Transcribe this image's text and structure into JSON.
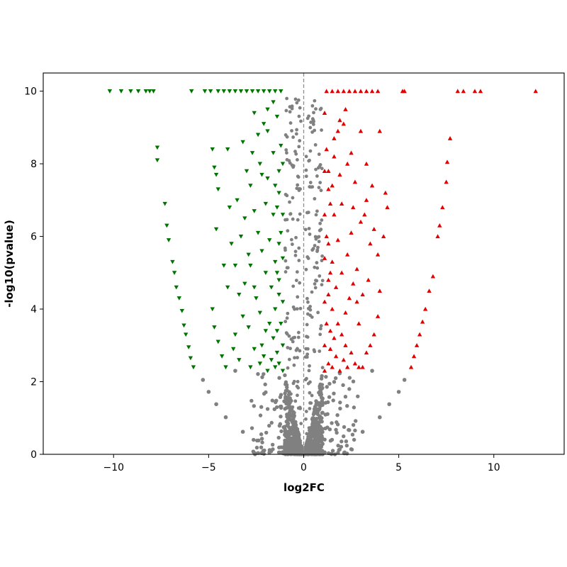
{
  "chart_data": {
    "type": "scatter",
    "title": "",
    "xlabel": "log2FC",
    "ylabel": "-log10(pvalue)",
    "xlim": [
      -13.7,
      13.7
    ],
    "ylim": [
      0,
      10.5
    ],
    "x_ticks": [
      -10,
      -5,
      0,
      5,
      10
    ],
    "x_tick_labels": [
      "−10",
      "−5",
      "0",
      "5",
      "10"
    ],
    "y_ticks": [
      0,
      2,
      4,
      6,
      8,
      10
    ],
    "y_tick_labels": [
      "0",
      "2",
      "4",
      "6",
      "8",
      "10"
    ],
    "grid": false,
    "legend": "none",
    "reference_line": {
      "x": 0,
      "style": "dashed",
      "color": "#8c8c8c"
    },
    "colors": {
      "down": "#007400",
      "up": "#e00000",
      "not_significant": "#808080"
    },
    "series": [
      {
        "marker": "triangle-down",
        "color": "#007400",
        "points": [
          [
            -10.2,
            10
          ],
          [
            -9.6,
            10
          ],
          [
            -9.1,
            10
          ],
          [
            -8.7,
            10
          ],
          [
            -8.3,
            10
          ],
          [
            -8.1,
            10
          ],
          [
            -7.9,
            10
          ],
          [
            -5.9,
            10
          ],
          [
            -5.2,
            10
          ],
          [
            -4.9,
            10
          ],
          [
            -4.5,
            10
          ],
          [
            -4.2,
            10
          ],
          [
            -3.9,
            10
          ],
          [
            -3.6,
            10
          ],
          [
            -3.3,
            10
          ],
          [
            -3.0,
            10
          ],
          [
            -2.7,
            10
          ],
          [
            -2.4,
            10
          ],
          [
            -2.1,
            10
          ],
          [
            -1.8,
            10
          ],
          [
            -1.5,
            10
          ],
          [
            -1.2,
            10
          ],
          [
            -7.7,
            8.45
          ],
          [
            -7.7,
            8.1
          ],
          [
            -7.3,
            6.9
          ],
          [
            -7.2,
            6.3
          ],
          [
            -7.1,
            5.9
          ],
          [
            -6.9,
            5.3
          ],
          [
            -6.8,
            5.0
          ],
          [
            -6.7,
            4.6
          ],
          [
            -6.55,
            4.3
          ],
          [
            -6.4,
            3.95
          ],
          [
            -6.3,
            3.55
          ],
          [
            -6.2,
            3.3
          ],
          [
            -6.05,
            2.95
          ],
          [
            -5.95,
            2.65
          ],
          [
            -5.8,
            2.4
          ],
          [
            -4.8,
            4.0
          ],
          [
            -4.7,
            3.5
          ],
          [
            -4.5,
            3.1
          ],
          [
            -4.3,
            2.7
          ],
          [
            -4.1,
            2.4
          ],
          [
            -4.2,
            5.2
          ],
          [
            -4.0,
            4.6
          ],
          [
            -4.6,
            6.2
          ],
          [
            -4.5,
            7.3
          ],
          [
            -4.6,
            7.7
          ],
          [
            -4.8,
            8.4
          ],
          [
            -4.7,
            7.9
          ],
          [
            -4.0,
            8.4
          ],
          [
            -3.9,
            6.8
          ],
          [
            -3.6,
            3.3
          ],
          [
            -3.4,
            2.6
          ],
          [
            -3.2,
            3.8
          ],
          [
            -3.1,
            4.7
          ],
          [
            -2.9,
            5.5
          ],
          [
            -3.1,
            6.5
          ],
          [
            -2.8,
            7.4
          ],
          [
            -2.7,
            8.3
          ],
          [
            -2.6,
            9.4
          ],
          [
            -2.4,
            8.8
          ],
          [
            -2.2,
            7.7
          ],
          [
            -1.9,
            9.5
          ],
          [
            -1.6,
            9.7
          ],
          [
            -1.4,
            9.3
          ],
          [
            -1.2,
            8.5
          ],
          [
            -1.1,
            8.0
          ],
          [
            -1.3,
            7.2
          ],
          [
            -1.1,
            6.6
          ],
          [
            -1.2,
            6.1
          ],
          [
            -1.1,
            5.4
          ],
          [
            -1.3,
            4.8
          ],
          [
            -1.1,
            4.2
          ],
          [
            -1.2,
            3.6
          ],
          [
            -1.1,
            3.0
          ],
          [
            -1.3,
            2.5
          ],
          [
            -1.1,
            2.3
          ],
          [
            -1.5,
            2.4
          ],
          [
            -1.7,
            2.6
          ],
          [
            -1.9,
            2.3
          ],
          [
            -2.1,
            2.7
          ],
          [
            -2.3,
            2.5
          ],
          [
            -2.6,
            2.9
          ],
          [
            -2.8,
            2.4
          ],
          [
            -1.6,
            3.2
          ],
          [
            -1.8,
            3.6
          ],
          [
            -2.0,
            3.4
          ],
          [
            -2.3,
            3.9
          ],
          [
            -2.5,
            4.3
          ],
          [
            -1.5,
            4.0
          ],
          [
            -1.7,
            4.6
          ],
          [
            -2.0,
            5.0
          ],
          [
            -2.2,
            5.6
          ],
          [
            -1.5,
            5.3
          ],
          [
            -1.8,
            5.9
          ],
          [
            -2.4,
            6.1
          ],
          [
            -1.6,
            6.6
          ],
          [
            -2.0,
            6.9
          ],
          [
            -2.6,
            6.7
          ],
          [
            -1.5,
            7.4
          ],
          [
            -1.9,
            7.6
          ],
          [
            -2.3,
            8.0
          ],
          [
            -1.6,
            8.3
          ],
          [
            -1.9,
            8.9
          ],
          [
            -2.1,
            9.1
          ],
          [
            -3.4,
            4.4
          ],
          [
            -3.6,
            5.2
          ],
          [
            -3.8,
            5.8
          ],
          [
            -3.3,
            6.0
          ],
          [
            -3.5,
            7.0
          ],
          [
            -3.0,
            7.8
          ],
          [
            -3.2,
            8.6
          ],
          [
            -2.8,
            5.2
          ],
          [
            -2.6,
            4.6
          ],
          [
            -2.9,
            3.5
          ],
          [
            -3.7,
            2.9
          ],
          [
            -2.2,
            3.0
          ],
          [
            -1.4,
            2.8
          ],
          [
            -1.4,
            3.4
          ],
          [
            -1.3,
            4.4
          ],
          [
            -1.4,
            5.0
          ],
          [
            -1.3,
            5.8
          ],
          [
            -1.4,
            6.8
          ],
          [
            -1.3,
            7.8
          ]
        ]
      },
      {
        "marker": "triangle-up",
        "color": "#e00000",
        "points": [
          [
            1.2,
            10
          ],
          [
            1.5,
            10
          ],
          [
            1.8,
            10
          ],
          [
            2.1,
            10
          ],
          [
            2.4,
            10
          ],
          [
            2.7,
            10
          ],
          [
            3.0,
            10
          ],
          [
            3.3,
            10
          ],
          [
            3.6,
            10
          ],
          [
            3.9,
            10
          ],
          [
            5.2,
            10
          ],
          [
            5.3,
            10
          ],
          [
            8.1,
            10
          ],
          [
            8.4,
            10
          ],
          [
            9.0,
            10
          ],
          [
            9.3,
            10
          ],
          [
            12.2,
            10
          ],
          [
            7.7,
            8.7
          ],
          [
            7.55,
            8.05
          ],
          [
            7.5,
            7.5
          ],
          [
            7.3,
            6.8
          ],
          [
            7.15,
            6.3
          ],
          [
            7.05,
            6.0
          ],
          [
            6.8,
            4.9
          ],
          [
            6.6,
            4.5
          ],
          [
            6.4,
            4.0
          ],
          [
            6.25,
            3.65
          ],
          [
            6.1,
            3.3
          ],
          [
            5.95,
            3.0
          ],
          [
            5.8,
            2.7
          ],
          [
            5.65,
            2.4
          ],
          [
            4.0,
            8.9
          ],
          [
            3.6,
            7.4
          ],
          [
            4.3,
            7.2
          ],
          [
            4.4,
            6.8
          ],
          [
            4.2,
            6.0
          ],
          [
            3.9,
            5.5
          ],
          [
            4.0,
            4.5
          ],
          [
            3.7,
            3.3
          ],
          [
            3.3,
            2.8
          ],
          [
            3.1,
            2.4
          ],
          [
            2.9,
            3.6
          ],
          [
            3.1,
            4.4
          ],
          [
            2.8,
            5.1
          ],
          [
            3.0,
            6.4
          ],
          [
            3.2,
            6.6
          ],
          [
            2.7,
            7.5
          ],
          [
            3.3,
            8.0
          ],
          [
            2.5,
            8.3
          ],
          [
            3.0,
            8.9
          ],
          [
            2.2,
            9.5
          ],
          [
            1.9,
            9.2
          ],
          [
            1.6,
            8.7
          ],
          [
            1.1,
            9.4
          ],
          [
            1.2,
            8.4
          ],
          [
            1.1,
            7.8
          ],
          [
            1.3,
            7.3
          ],
          [
            1.1,
            6.6
          ],
          [
            1.2,
            6.0
          ],
          [
            1.1,
            5.4
          ],
          [
            1.3,
            4.8
          ],
          [
            1.1,
            4.2
          ],
          [
            1.2,
            3.6
          ],
          [
            1.1,
            3.0
          ],
          [
            1.3,
            2.5
          ],
          [
            1.1,
            2.3
          ],
          [
            1.5,
            2.4
          ],
          [
            1.7,
            2.7
          ],
          [
            1.9,
            2.3
          ],
          [
            2.1,
            2.6
          ],
          [
            2.3,
            2.4
          ],
          [
            2.5,
            2.8
          ],
          [
            2.7,
            2.5
          ],
          [
            1.6,
            3.2
          ],
          [
            1.8,
            3.6
          ],
          [
            2.0,
            3.3
          ],
          [
            2.2,
            3.9
          ],
          [
            2.4,
            4.3
          ],
          [
            1.5,
            4.0
          ],
          [
            1.7,
            4.6
          ],
          [
            2.0,
            5.0
          ],
          [
            2.3,
            5.5
          ],
          [
            1.5,
            5.3
          ],
          [
            1.8,
            5.9
          ],
          [
            2.5,
            6.1
          ],
          [
            1.6,
            6.6
          ],
          [
            2.0,
            6.9
          ],
          [
            2.6,
            6.8
          ],
          [
            1.5,
            7.4
          ],
          [
            1.9,
            7.7
          ],
          [
            2.3,
            8.0
          ],
          [
            1.6,
            8.2
          ],
          [
            1.8,
            8.9
          ],
          [
            2.1,
            9.1
          ],
          [
            3.4,
            4.8
          ],
          [
            3.5,
            5.8
          ],
          [
            3.7,
            6.2
          ],
          [
            3.3,
            7.0
          ],
          [
            2.8,
            4.2
          ],
          [
            2.6,
            4.7
          ],
          [
            2.2,
            3.0
          ],
          [
            1.4,
            2.9
          ],
          [
            1.4,
            3.4
          ],
          [
            1.3,
            4.4
          ],
          [
            1.4,
            5.0
          ],
          [
            1.3,
            5.8
          ],
          [
            1.4,
            6.9
          ],
          [
            1.3,
            7.8
          ],
          [
            3.9,
            3.8
          ],
          [
            3.5,
            3.0
          ],
          [
            2.9,
            2.4
          ]
        ]
      },
      {
        "marker": "circle",
        "color": "#808080",
        "points": [
          [
            -3.2,
            0.62
          ],
          [
            -4.1,
            1.02
          ],
          [
            -4.6,
            1.38
          ],
          [
            -5.0,
            1.72
          ],
          [
            -5.3,
            2.05
          ],
          [
            3.1,
            0.62
          ],
          [
            4.0,
            1.02
          ],
          [
            4.5,
            1.38
          ],
          [
            5.0,
            1.72
          ],
          [
            5.3,
            2.05
          ],
          [
            -3.6,
            2.3
          ],
          [
            3.6,
            2.3
          ]
        ]
      }
    ]
  }
}
